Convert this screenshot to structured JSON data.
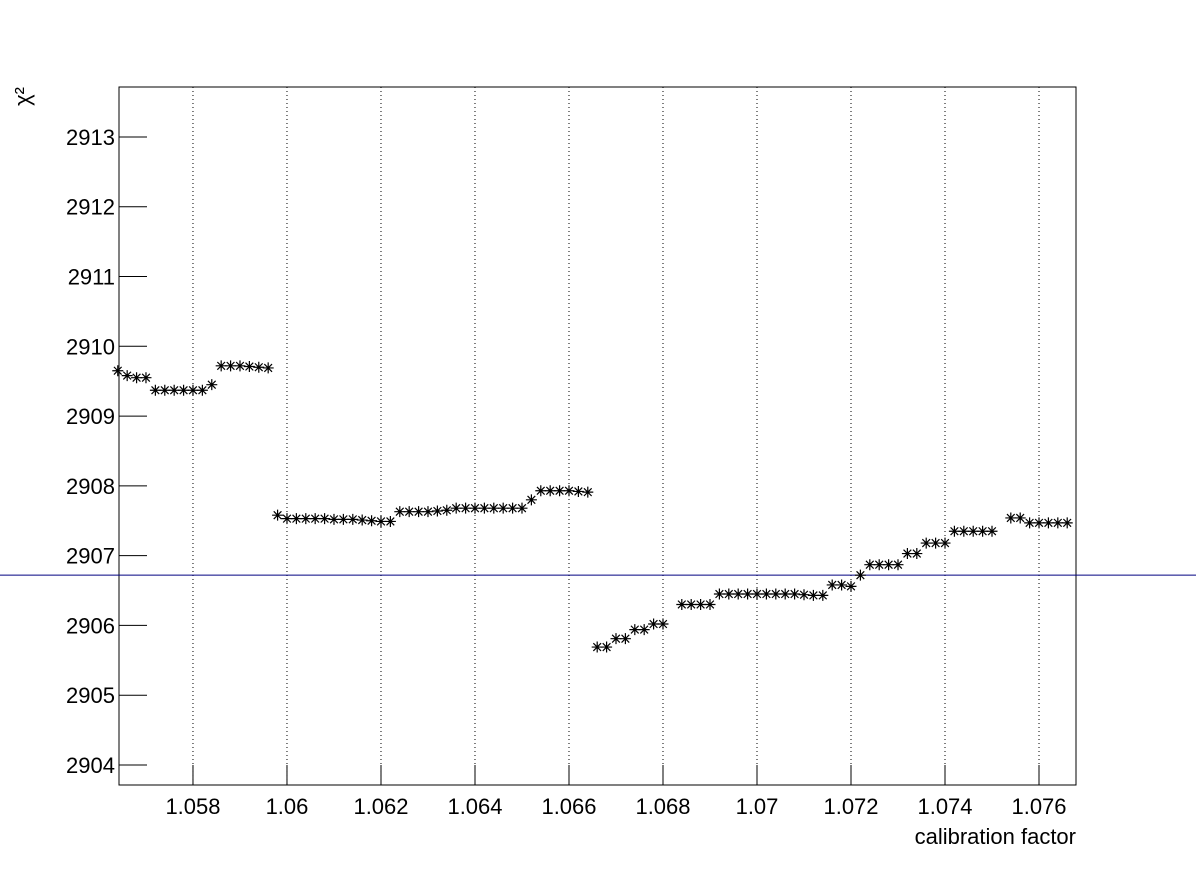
{
  "chart_data": {
    "type": "scatter",
    "xlabel": "calibration factor",
    "ylabel": "χ²",
    "xlim": [
      1.056426,
      1.076787
    ],
    "ylim": [
      2903.713,
      2913.716
    ],
    "xticks": [
      1.058,
      1.06,
      1.062,
      1.064,
      1.066,
      1.068,
      1.07,
      1.072,
      1.074,
      1.076
    ],
    "yticks": [
      2904,
      2905,
      2906,
      2907,
      2908,
      2909,
      2910,
      2911,
      2912,
      2913
    ],
    "grid_x": true,
    "marker_color": "#000000",
    "reference_line": {
      "value": 2906.72,
      "color": "#000080"
    },
    "x": [
      1.0564,
      1.0566,
      1.0568,
      1.057,
      1.0572,
      1.0574,
      1.0576,
      1.0578,
      1.058,
      1.0582,
      1.0584,
      1.0586,
      1.0588,
      1.059,
      1.0592,
      1.0594,
      1.0596,
      1.0598,
      1.06,
      1.0602,
      1.0604,
      1.0606,
      1.0608,
      1.061,
      1.0612,
      1.0614,
      1.0616,
      1.0618,
      1.062,
      1.0622,
      1.0624,
      1.0626,
      1.0628,
      1.063,
      1.0632,
      1.0634,
      1.0636,
      1.0638,
      1.064,
      1.0642,
      1.0644,
      1.0646,
      1.0648,
      1.065,
      1.0652,
      1.0654,
      1.0656,
      1.0658,
      1.066,
      1.0662,
      1.0664,
      1.0666,
      1.0668,
      1.067,
      1.0672,
      1.0674,
      1.0676,
      1.0678,
      1.068,
      1.0684,
      1.0686,
      1.0688,
      1.069,
      1.0692,
      1.0694,
      1.0696,
      1.0698,
      1.07,
      1.0702,
      1.0704,
      1.0706,
      1.0708,
      1.071,
      1.0712,
      1.0714,
      1.0716,
      1.0718,
      1.072,
      1.0722,
      1.0724,
      1.0726,
      1.0728,
      1.073,
      1.0732,
      1.0734,
      1.0736,
      1.0738,
      1.074,
      1.0742,
      1.0744,
      1.0746,
      1.0748,
      1.075,
      1.0754,
      1.0756,
      1.0758,
      1.076,
      1.0762,
      1.0764,
      1.0766
    ],
    "values": [
      2909.65,
      2909.58,
      2909.55,
      2909.55,
      2909.37,
      2909.37,
      2909.37,
      2909.37,
      2909.37,
      2909.37,
      2909.45,
      2909.72,
      2909.72,
      2909.72,
      2909.71,
      2909.7,
      2909.69,
      2907.58,
      2907.53,
      2907.53,
      2907.53,
      2907.53,
      2907.53,
      2907.52,
      2907.52,
      2907.52,
      2907.51,
      2907.5,
      2907.49,
      2907.49,
      2907.63,
      2907.63,
      2907.63,
      2907.63,
      2907.64,
      2907.65,
      2907.68,
      2907.68,
      2907.68,
      2907.68,
      2907.68,
      2907.68,
      2907.68,
      2907.68,
      2907.8,
      2907.93,
      2907.93,
      2907.93,
      2907.93,
      2907.92,
      2907.91,
      2905.69,
      2905.69,
      2905.81,
      2905.81,
      2905.94,
      2905.94,
      2906.02,
      2906.02,
      2906.3,
      2906.3,
      2906.3,
      2906.3,
      2906.45,
      2906.45,
      2906.45,
      2906.45,
      2906.45,
      2906.45,
      2906.45,
      2906.45,
      2906.45,
      2906.44,
      2906.43,
      2906.43,
      2906.58,
      2906.58,
      2906.56,
      2906.72,
      2906.87,
      2906.87,
      2906.87,
      2906.87,
      2907.03,
      2907.03,
      2907.18,
      2907.18,
      2907.18,
      2907.35,
      2907.35,
      2907.35,
      2907.35,
      2907.35,
      2907.54,
      2907.54,
      2907.47,
      2907.47,
      2907.47,
      2907.47,
      2907.47
    ]
  }
}
